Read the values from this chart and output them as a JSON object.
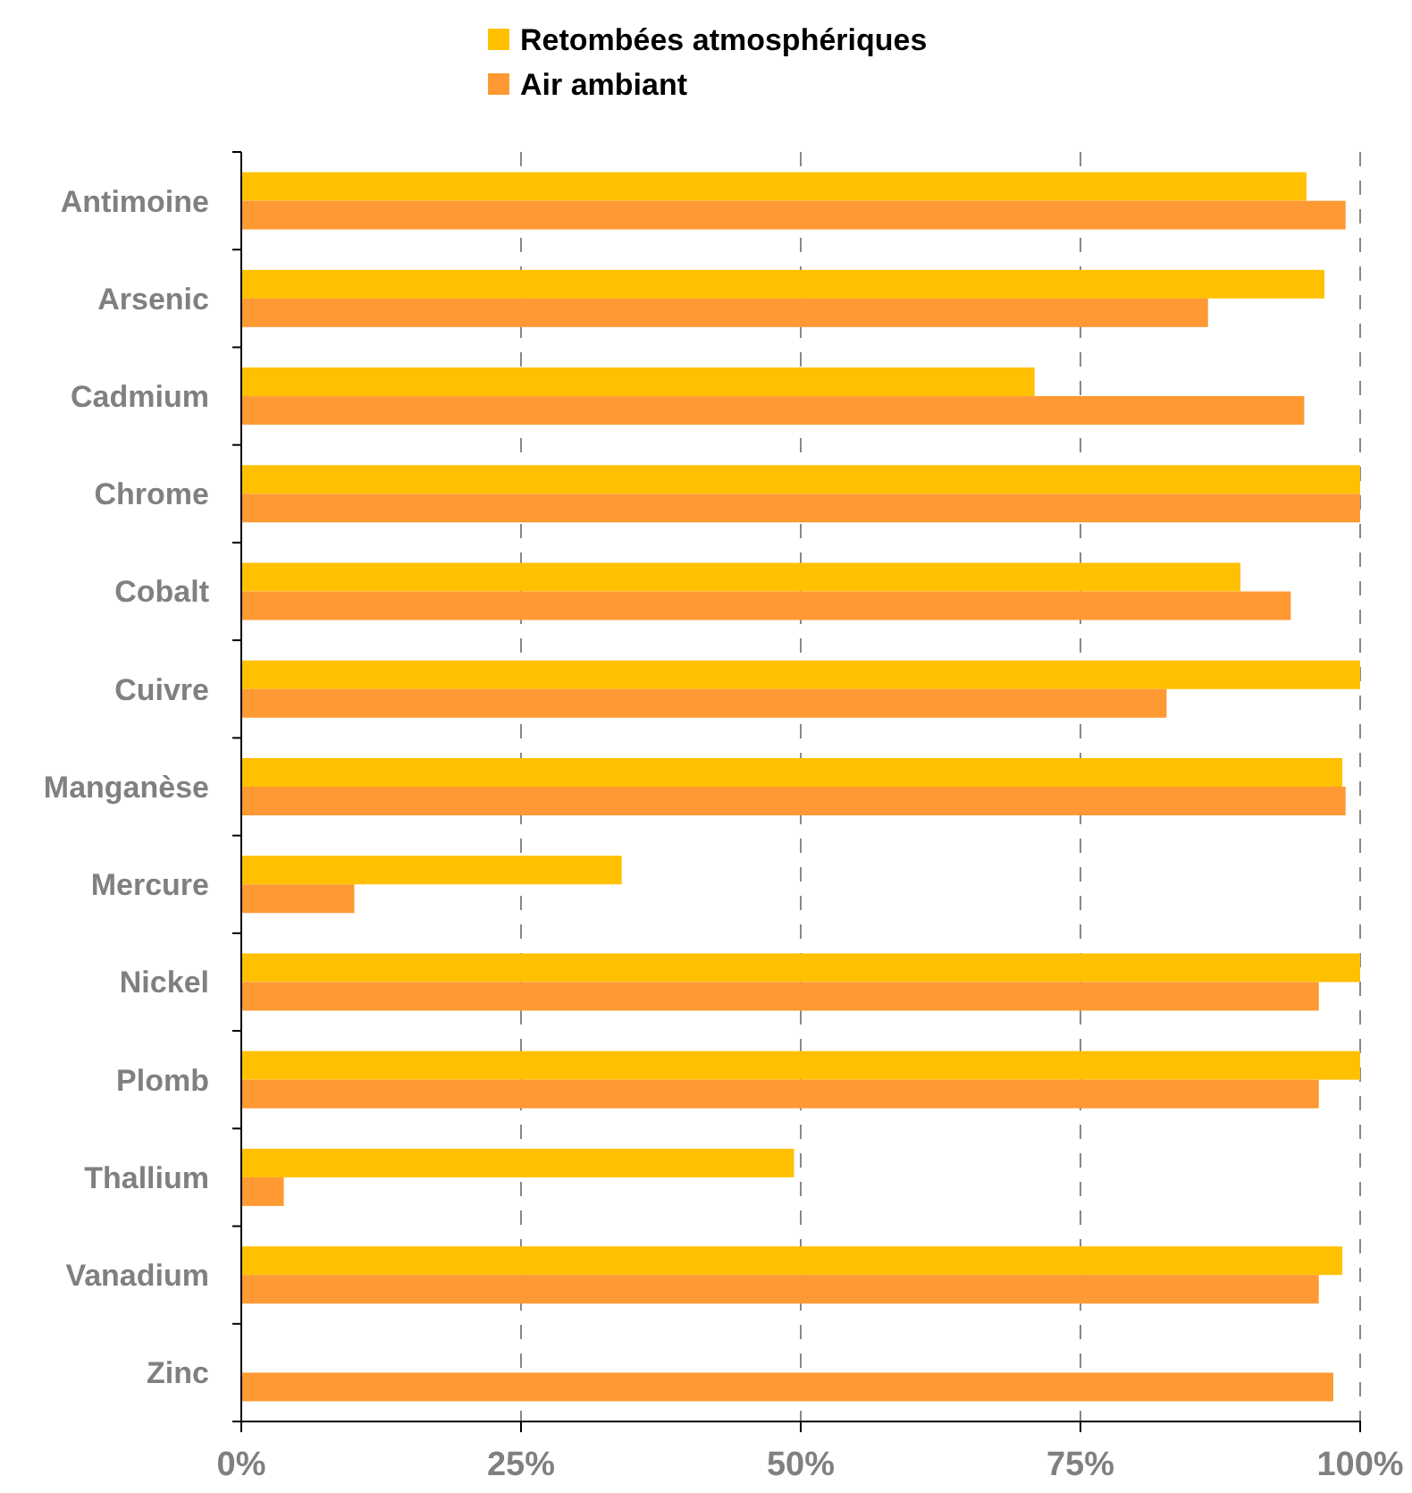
{
  "chart_data": {
    "type": "bar",
    "orientation": "horizontal",
    "categories": [
      "Antimoine",
      "Arsenic",
      "Cadmium",
      "Chrome",
      "Cobalt",
      "Cuivre",
      "Manganèse",
      "Mercure",
      "Nickel",
      "Plomb",
      "Thallium",
      "Vanadium",
      "Zinc"
    ],
    "series": [
      {
        "name": "Retombées atmosphériques",
        "color": "#ffc000",
        "values": [
          95.2,
          96.8,
          70.9,
          100,
          89.3,
          100,
          98.4,
          34.0,
          100,
          100,
          49.4,
          98.4,
          null
        ]
      },
      {
        "name": "Air ambiant",
        "color": "#ff9933",
        "values": [
          98.7,
          86.4,
          95.0,
          100,
          93.8,
          82.7,
          98.7,
          10.1,
          96.3,
          96.3,
          3.8,
          96.3,
          97.6
        ]
      }
    ],
    "xlim": [
      0,
      100
    ],
    "xticks": [
      {
        "value": 0,
        "label": "0%"
      },
      {
        "value": 25,
        "label": "25%"
      },
      {
        "value": 50,
        "label": "50%"
      },
      {
        "value": 75,
        "label": "75%"
      },
      {
        "value": 100,
        "label": "100%"
      }
    ],
    "grid": "x",
    "legend": "top"
  }
}
